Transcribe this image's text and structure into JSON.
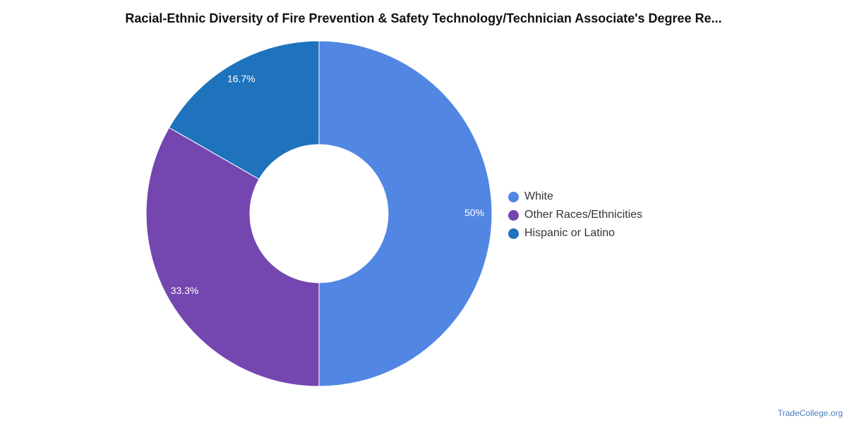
{
  "chart_data": {
    "type": "pie",
    "title": "Racial-Ethnic Diversity of Fire Prevention & Safety Technology/Technician Associate's Degree Re...",
    "donut": true,
    "legend_position": "right",
    "series": [
      {
        "name": "White",
        "value": 50,
        "label": "50%",
        "color": "#5286e3"
      },
      {
        "name": "Other Races/Ethnicities",
        "value": 33.3,
        "label": "33.3%",
        "color": "#7446b0"
      },
      {
        "name": "Hispanic or Latino",
        "value": 16.7,
        "label": "16.7%",
        "color": "#1f72bc"
      }
    ]
  },
  "watermark": "TradeCollege.org"
}
